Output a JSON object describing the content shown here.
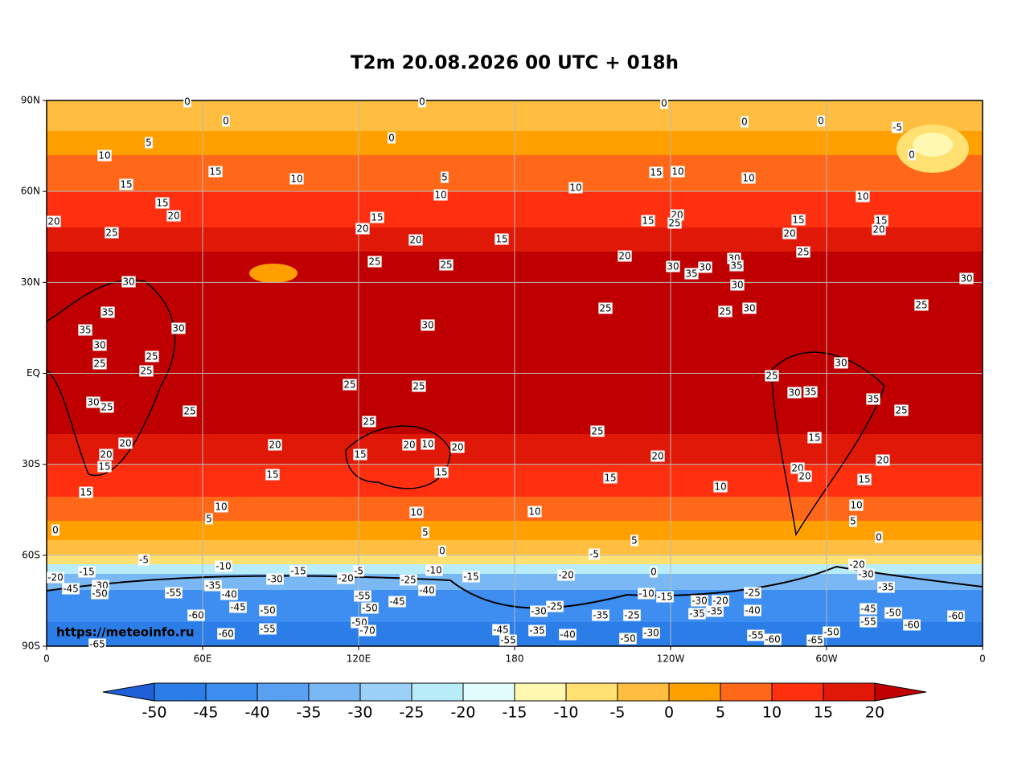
{
  "title": "T2m 20.08.2026 00 UTC + 018h",
  "map": {
    "lat_labels": [
      "90N",
      "60N",
      "30N",
      "EQ",
      "30S",
      "60S",
      "90S"
    ],
    "lon_labels": [
      "0",
      "60E",
      "120E",
      "180",
      "120W",
      "60W",
      "0"
    ],
    "watermark": "https://meteoinfo.ru",
    "contour_labels": [
      0,
      0,
      0,
      0,
      5,
      10,
      0,
      15,
      15,
      20,
      25,
      20,
      15,
      10,
      20,
      15,
      10,
      5,
      15,
      10,
      15,
      10,
      15,
      20,
      25,
      30,
      30,
      35,
      30,
      35,
      30,
      25,
      30,
      20,
      15,
      25,
      15,
      20,
      30,
      25,
      0,
      0,
      -5,
      0,
      10,
      10,
      25,
      20,
      25,
      30,
      25,
      20,
      30,
      35,
      35,
      30,
      25,
      30,
      25,
      25,
      30,
      25,
      25,
      20,
      20,
      15,
      15,
      20,
      15,
      10,
      5,
      0,
      25,
      25,
      25,
      20,
      10,
      20,
      15,
      15,
      10,
      5,
      0,
      10,
      25,
      20,
      15,
      10,
      5,
      0,
      -5,
      25,
      30,
      35,
      25,
      30,
      35,
      15,
      20,
      15,
      10,
      5,
      0,
      20,
      20,
      -5,
      -15,
      -20,
      -30,
      -50,
      -45,
      -55,
      -60,
      -65,
      -60,
      -55,
      -50,
      -45,
      -40,
      -35,
      -10,
      -15,
      -30,
      -20,
      -5,
      -55,
      -50,
      -50,
      -70,
      -45,
      -40,
      -25,
      -10,
      -15,
      -20,
      -30,
      -25,
      -45,
      -35,
      -40,
      -55,
      -35,
      -25,
      -30,
      -50,
      -10,
      -15,
      -30,
      -20,
      -35,
      -35,
      -25,
      -40,
      -55,
      -60,
      -65,
      -50,
      -30,
      -20,
      -35,
      -45,
      -55,
      -50,
      -60,
      -60
    ]
  },
  "colorbar": {
    "levels": [
      -50,
      -45,
      -40,
      -35,
      -30,
      -25,
      -20,
      -15,
      -10,
      -5,
      0,
      5,
      10,
      15,
      20
    ],
    "colors": [
      "#1f5fd8",
      "#2b7de8",
      "#3d8ef0",
      "#5aa0f0",
      "#7ab8f5",
      "#9bd0f8",
      "#b7ecf8",
      "#e2fbfb",
      "#fff8b0",
      "#ffe070",
      "#ffbe40",
      "#ffa000",
      "#ff6818",
      "#ff3010",
      "#e01808",
      "#c00000"
    ]
  }
}
